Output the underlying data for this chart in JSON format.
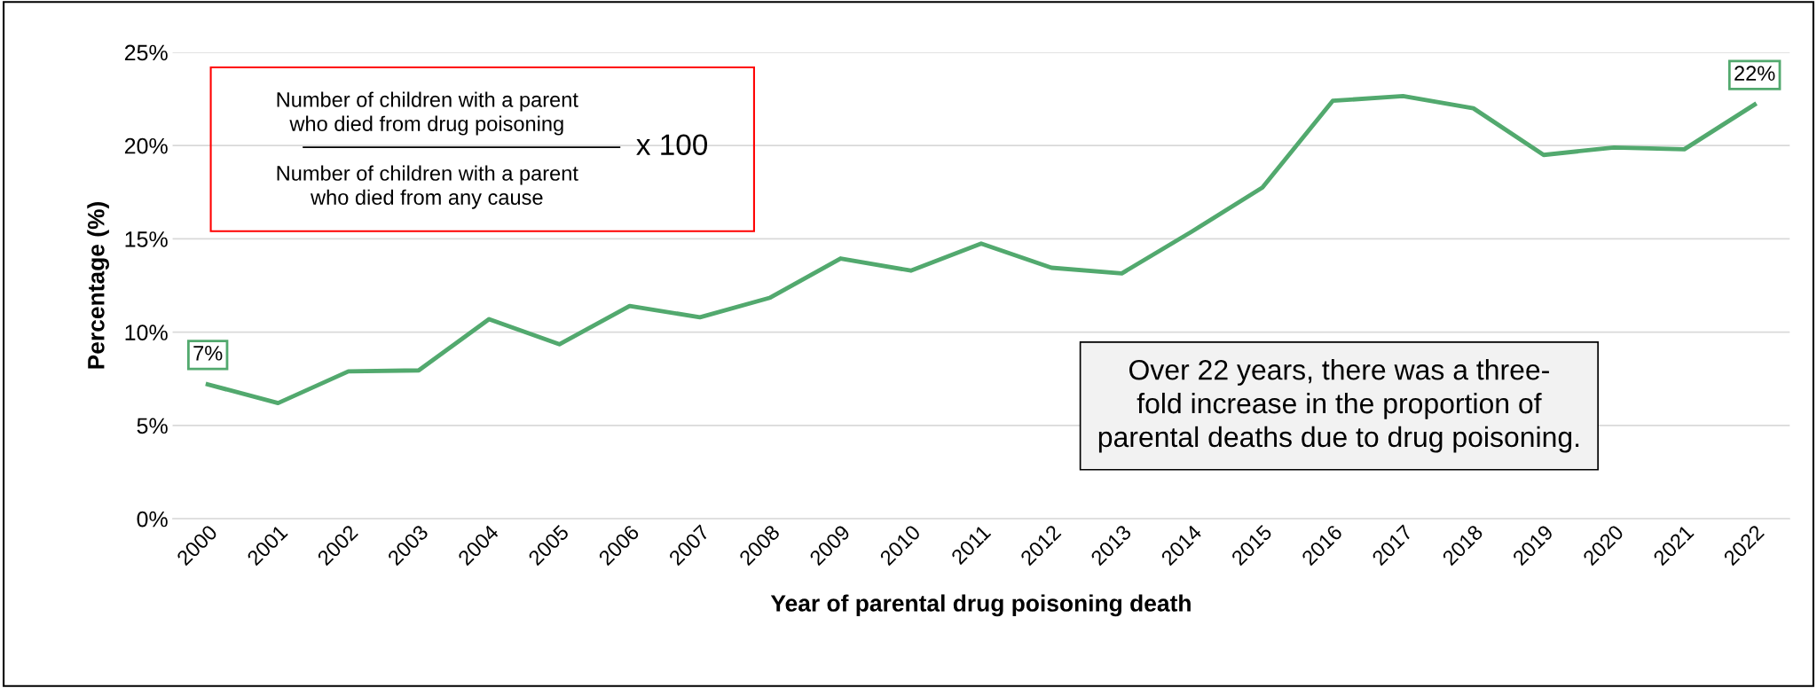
{
  "chart_data": {
    "type": "line",
    "xlabel": "Year of parental drug poisoning death",
    "ylabel": "Percentage (%)",
    "categories": [
      "2000",
      "2001",
      "2002",
      "2003",
      "2004",
      "2005",
      "2006",
      "2007",
      "2008",
      "2009",
      "2010",
      "2011",
      "2012",
      "2013",
      "2014",
      "2015",
      "2016",
      "2017",
      "2018",
      "2019",
      "2020",
      "2021",
      "2022"
    ],
    "series": [
      {
        "color": "#52a96e",
        "values": [
          7.2,
          6.2,
          7.9,
          7.95,
          10.7,
          9.35,
          11.4,
          10.8,
          11.85,
          13.95,
          13.3,
          14.75,
          13.45,
          13.15,
          15.4,
          17.75,
          22.4,
          22.65,
          22.0,
          19.5,
          19.9,
          19.8,
          22.2
        ],
        "value_labels": [
          "7%",
          null,
          null,
          null,
          null,
          null,
          null,
          null,
          null,
          null,
          null,
          null,
          null,
          null,
          null,
          null,
          null,
          null,
          null,
          null,
          null,
          null,
          "22%"
        ]
      }
    ],
    "ylim": [
      0,
      25
    ],
    "yticks": [
      {
        "value": 0,
        "label": "0%"
      },
      {
        "value": 5,
        "label": "5%"
      },
      {
        "value": 10,
        "label": "10%"
      },
      {
        "value": 15,
        "label": "15%"
      },
      {
        "value": 20,
        "label": "20%"
      },
      {
        "value": 25,
        "label": "25%"
      }
    ],
    "grid": "y",
    "legend": false,
    "marker": "none",
    "line_style": "solid",
    "annotations": [
      "Number of children with a parent\nwho died from drug poisoning",
      "Number of children with a parent\nwho died from any cause",
      "x 100",
      "Over 22 years, there was a three-\nfold increase in the proportion of\nparental deaths due to drug poisoning."
    ]
  }
}
